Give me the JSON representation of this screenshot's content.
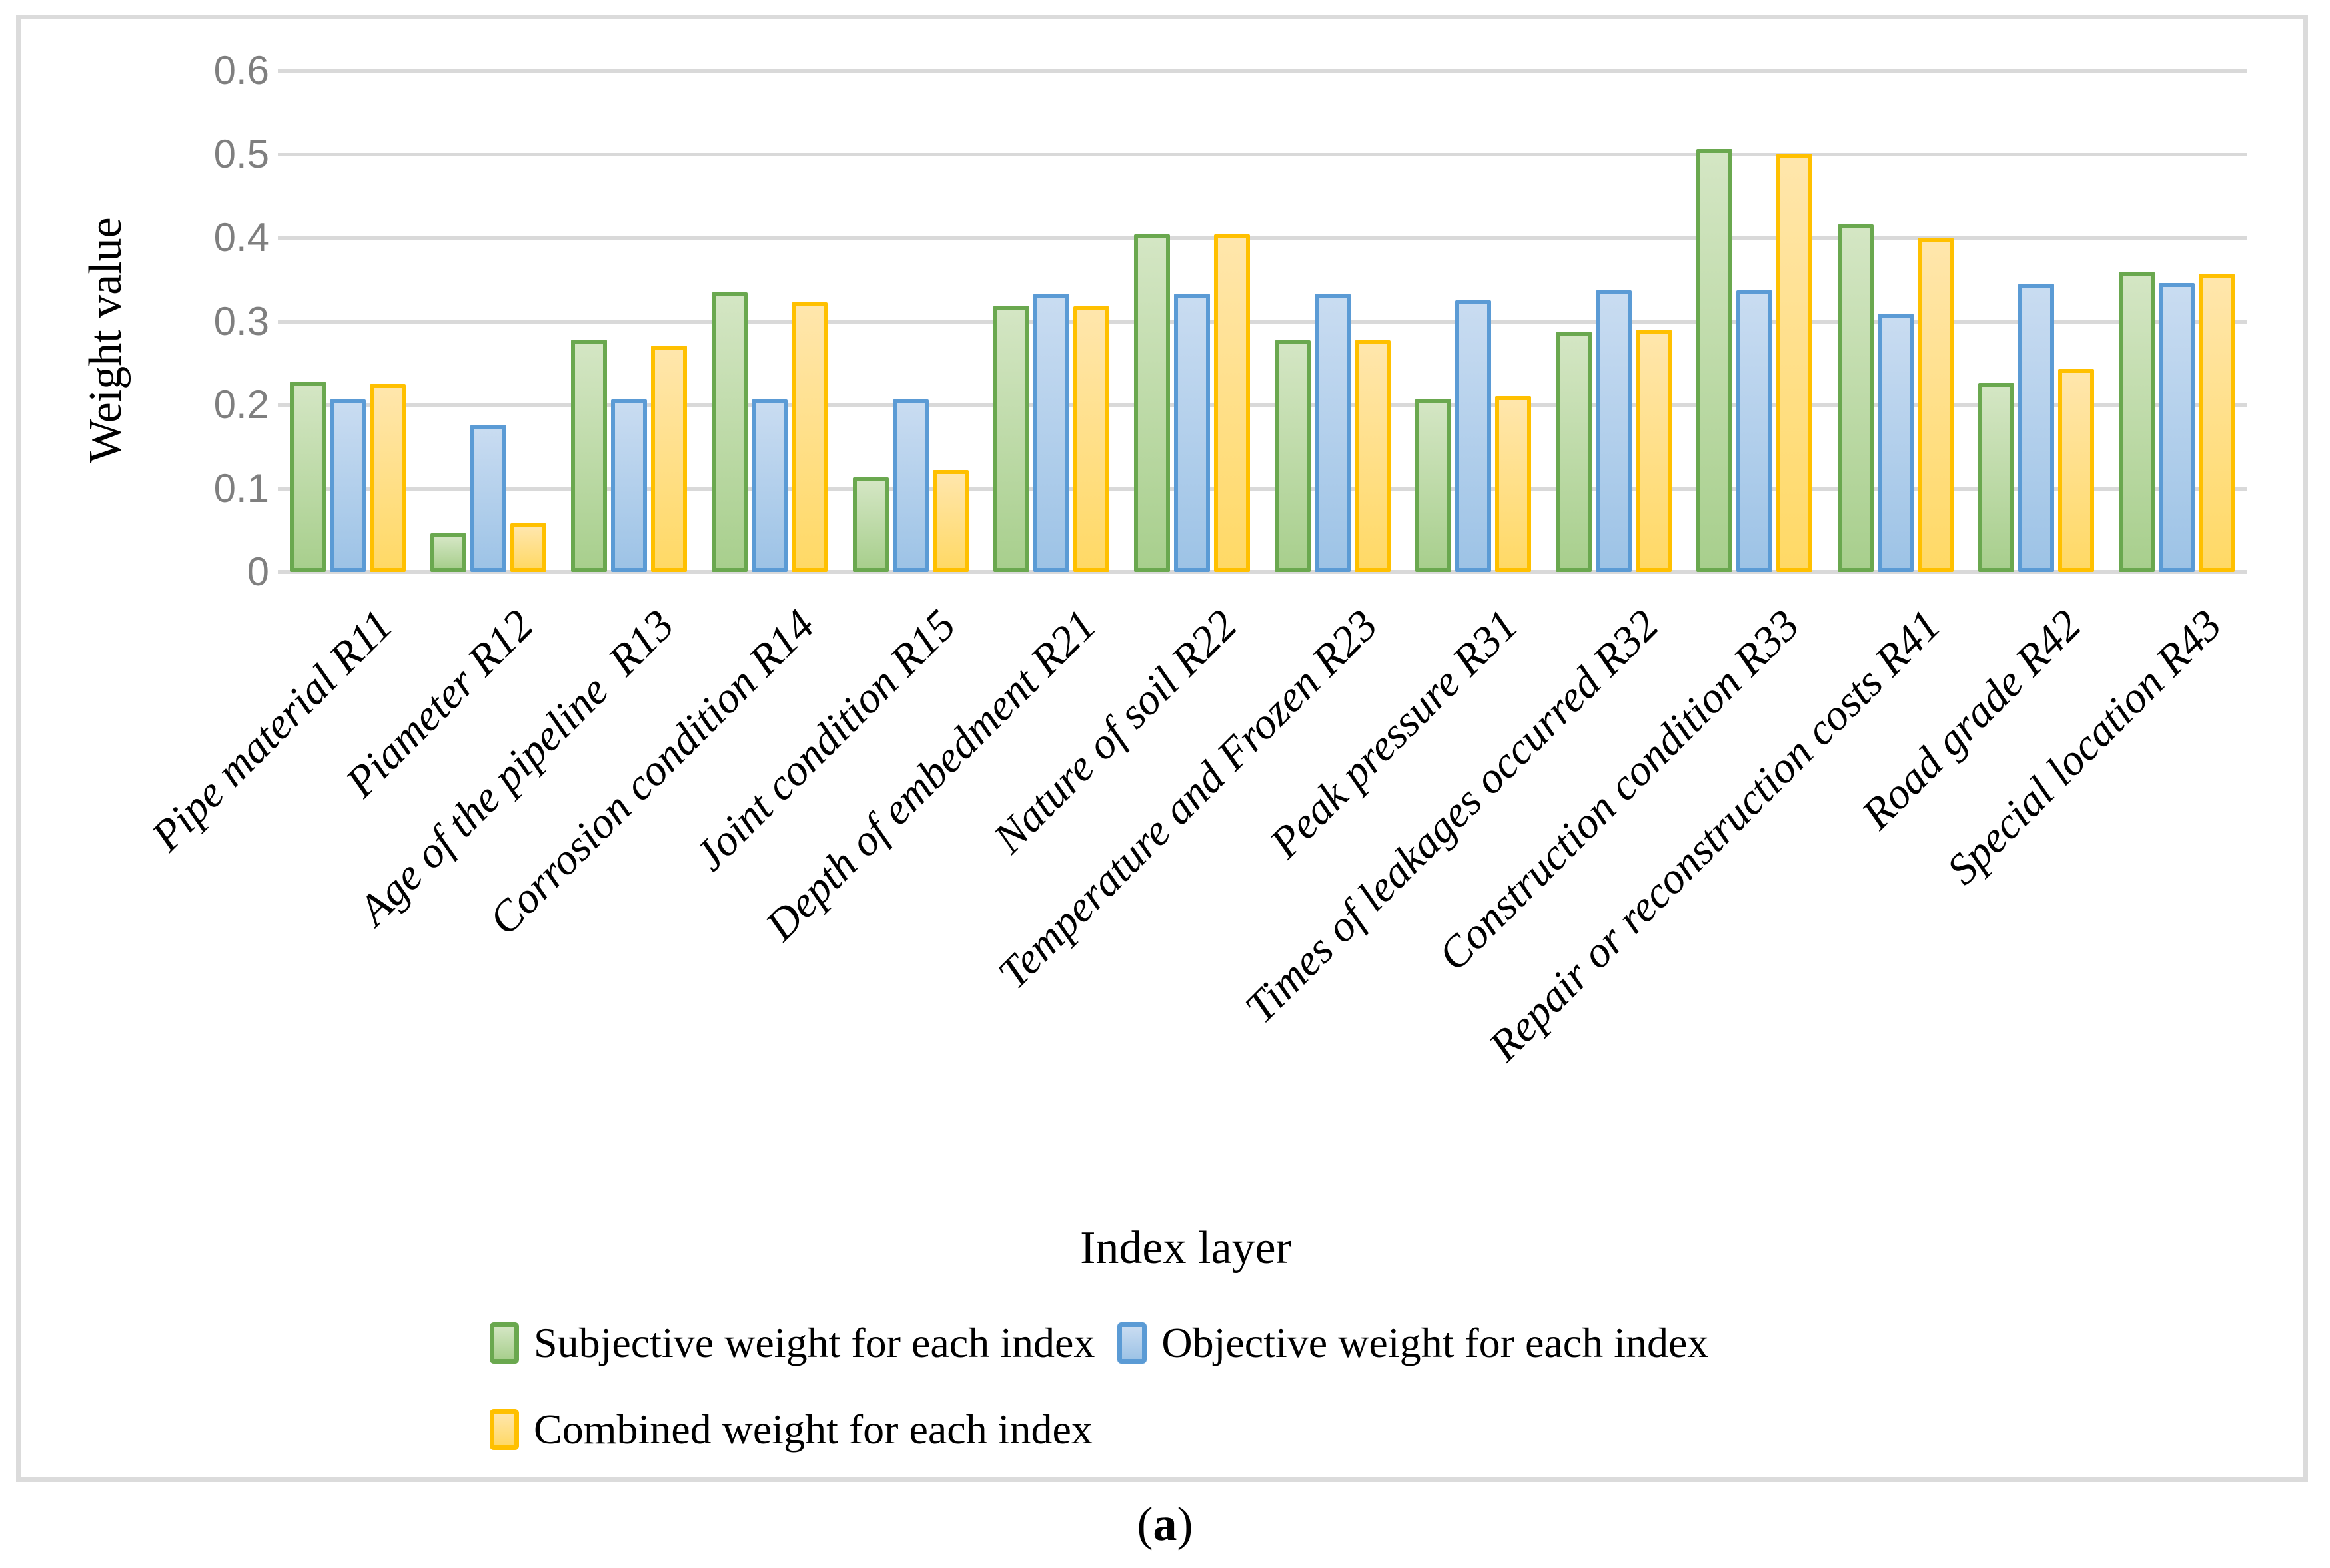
{
  "figure": {
    "caption_prefix": "(",
    "caption_letter": "a",
    "caption_suffix": ")"
  },
  "chart_data": {
    "type": "bar",
    "title": "",
    "xlabel": "Index layer",
    "ylabel": "Weight value",
    "ylim": [
      0,
      0.6
    ],
    "ytick_step": 0.1,
    "yticks": [
      "0",
      "0.1",
      "0.2",
      "0.3",
      "0.4",
      "0.5",
      "0.6"
    ],
    "grid": true,
    "legend_position": "bottom",
    "categories": [
      "Pipe material R11",
      "Piameter R12",
      "Age of the pipeline  R13",
      "Corrosion condition R14",
      "Joint condition R15",
      "Depth of embedment R21",
      "Nature of soil R22",
      "Temperature and Frozen R23",
      "Peak pressure R31",
      "Times of leakages occurred R32",
      "Construction condition R33",
      "Repair or reconstruction costs R41",
      "Road grade R42",
      "Special location R43"
    ],
    "series": [
      {
        "name": "Subjective weight for each index",
        "key": "subjective",
        "border_color": "#6AA84F",
        "fill_top": "#D4E6C4",
        "fill_bottom": "#A8CF8D",
        "values": [
          0.228,
          0.046,
          0.278,
          0.335,
          0.113,
          0.319,
          0.404,
          0.277,
          0.207,
          0.288,
          0.506,
          0.416,
          0.226,
          0.359
        ]
      },
      {
        "name": "Objective weight for each index",
        "key": "objective",
        "border_color": "#5B9BD5",
        "fill_top": "#C9DCF1",
        "fill_bottom": "#9DC3E6",
        "values": [
          0.206,
          0.176,
          0.206,
          0.206,
          0.206,
          0.333,
          0.333,
          0.333,
          0.325,
          0.337,
          0.337,
          0.309,
          0.345,
          0.346
        ]
      },
      {
        "name": "Combined weight for each index",
        "key": "combined",
        "border_color": "#FFC000",
        "fill_top": "#FFE6AC",
        "fill_bottom": "#FFD966",
        "values": [
          0.225,
          0.058,
          0.271,
          0.323,
          0.122,
          0.318,
          0.404,
          0.277,
          0.21,
          0.29,
          0.5,
          0.4,
          0.243,
          0.357
        ]
      }
    ],
    "colors": {
      "gridline": "#D9D9D9",
      "chart_border": "#DBDBDB",
      "tick_text": "#7F7F7F",
      "label_text": "#000000",
      "background": "#FFFFFF"
    }
  }
}
